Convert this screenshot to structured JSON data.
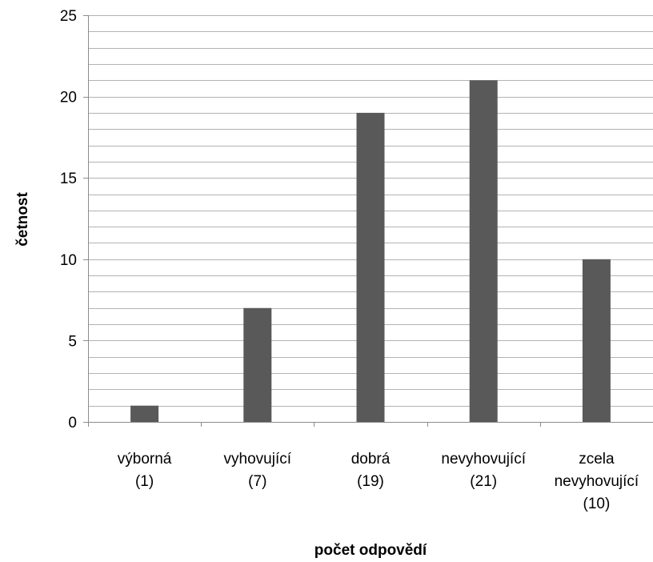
{
  "chart_data": {
    "type": "bar",
    "categories": [
      [
        "výborná",
        "(1)"
      ],
      [
        "vyhovující",
        "(7)"
      ],
      [
        "dobrá",
        "(19)"
      ],
      [
        "nevyhovující",
        "(21)"
      ],
      [
        "zcela",
        "nevyhovující",
        "(10)"
      ]
    ],
    "values": [
      1,
      7,
      19,
      21,
      10
    ],
    "xlabel": "počet odpovědí",
    "ylabel": "četnost",
    "ylim": [
      0,
      25
    ],
    "major_ticks": [
      0,
      5,
      10,
      15,
      20,
      25
    ],
    "minor_step": 1,
    "grid": true,
    "legend": "none",
    "bar_color": "#595959",
    "grid_color": "#b3b3b3",
    "axis_color": "#8c8c8c"
  }
}
